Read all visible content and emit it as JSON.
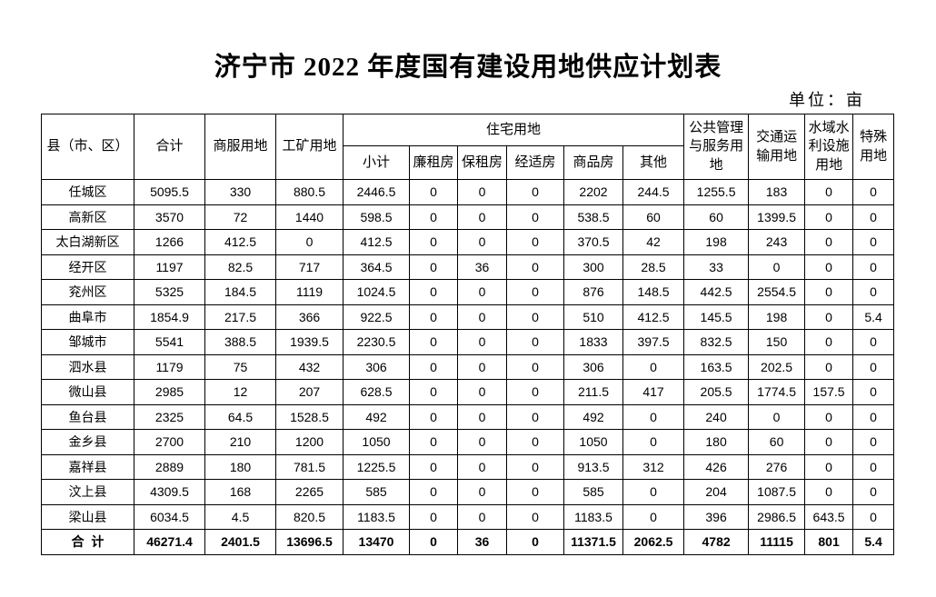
{
  "header": {
    "title": "济宁市 2022 年度国有建设用地供应计划表",
    "unit": "单位：亩"
  },
  "table": {
    "columns": {
      "county": "县（市、区）",
      "total": "合计",
      "commercial": "商服用地",
      "industrial": "工矿用地",
      "residential": "住宅用地",
      "public": "公共管理与服务用地",
      "transport": "交通运输用地",
      "water": "水域水利设施用地",
      "special": "特殊用地"
    },
    "subcolumns": [
      "小计",
      "廉租房",
      "保租房",
      "经适房",
      "商品房",
      "其他"
    ],
    "rows": [
      [
        "任城区",
        "5095.5",
        "330",
        "880.5",
        "2446.5",
        "0",
        "0",
        "0",
        "2202",
        "244.5",
        "1255.5",
        "183",
        "0",
        "0"
      ],
      [
        "高新区",
        "3570",
        "72",
        "1440",
        "598.5",
        "0",
        "0",
        "0",
        "538.5",
        "60",
        "60",
        "1399.5",
        "0",
        "0"
      ],
      [
        "太白湖新区",
        "1266",
        "412.5",
        "0",
        "412.5",
        "0",
        "0",
        "0",
        "370.5",
        "42",
        "198",
        "243",
        "0",
        "0"
      ],
      [
        "经开区",
        "1197",
        "82.5",
        "717",
        "364.5",
        "0",
        "36",
        "0",
        "300",
        "28.5",
        "33",
        "0",
        "0",
        "0"
      ],
      [
        "兖州区",
        "5325",
        "184.5",
        "1119",
        "1024.5",
        "0",
        "0",
        "0",
        "876",
        "148.5",
        "442.5",
        "2554.5",
        "0",
        "0"
      ],
      [
        "曲阜市",
        "1854.9",
        "217.5",
        "366",
        "922.5",
        "0",
        "0",
        "0",
        "510",
        "412.5",
        "145.5",
        "198",
        "0",
        "5.4"
      ],
      [
        "邹城市",
        "5541",
        "388.5",
        "1939.5",
        "2230.5",
        "0",
        "0",
        "0",
        "1833",
        "397.5",
        "832.5",
        "150",
        "0",
        "0"
      ],
      [
        "泗水县",
        "1179",
        "75",
        "432",
        "306",
        "0",
        "0",
        "0",
        "306",
        "0",
        "163.5",
        "202.5",
        "0",
        "0"
      ],
      [
        "微山县",
        "2985",
        "12",
        "207",
        "628.5",
        "0",
        "0",
        "0",
        "211.5",
        "417",
        "205.5",
        "1774.5",
        "157.5",
        "0"
      ],
      [
        "鱼台县",
        "2325",
        "64.5",
        "1528.5",
        "492",
        "0",
        "0",
        "0",
        "492",
        "0",
        "240",
        "0",
        "0",
        "0"
      ],
      [
        "金乡县",
        "2700",
        "210",
        "1200",
        "1050",
        "0",
        "0",
        "0",
        "1050",
        "0",
        "180",
        "60",
        "0",
        "0"
      ],
      [
        "嘉祥县",
        "2889",
        "180",
        "781.5",
        "1225.5",
        "0",
        "0",
        "0",
        "913.5",
        "312",
        "426",
        "276",
        "0",
        "0"
      ],
      [
        "汶上县",
        "4309.5",
        "168",
        "2265",
        "585",
        "0",
        "0",
        "0",
        "585",
        "0",
        "204",
        "1087.5",
        "0",
        "0"
      ],
      [
        "梁山县",
        "6034.5",
        "4.5",
        "820.5",
        "1183.5",
        "0",
        "0",
        "0",
        "1183.5",
        "0",
        "396",
        "2986.5",
        "643.5",
        "0"
      ]
    ],
    "total": [
      "合  计",
      "46271.4",
      "2401.5",
      "13696.5",
      "13470",
      "0",
      "36",
      "0",
      "11371.5",
      "2062.5",
      "4782",
      "11115",
      "801",
      "5.4"
    ]
  }
}
